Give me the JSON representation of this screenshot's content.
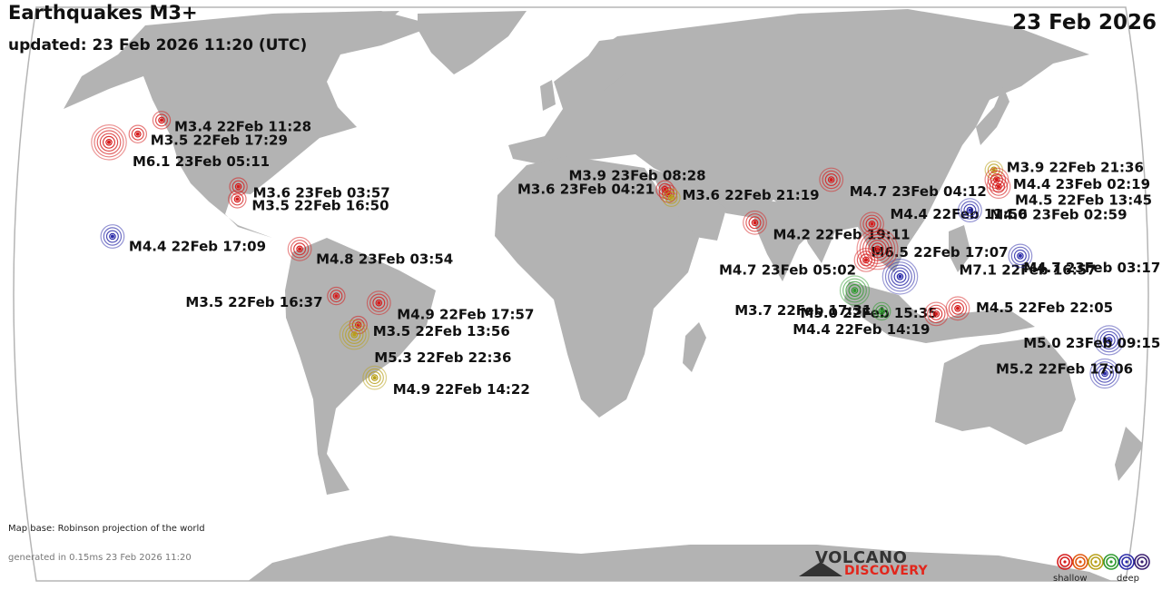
{
  "map": {
    "title": "Earthquakes M3+",
    "updated": "updated: 23 Feb 2026 11:20 (UTC)",
    "date": "23 Feb 2026",
    "base_note": "Map base: Robinson projection of the world",
    "generated_note": "generated in 0.15ms 23 Feb 2026 11:20",
    "ocean_color": "#ffffff",
    "land_color": "#b3b3b3"
  },
  "brand": {
    "line1": "VOLCANO",
    "line2": "DISCOVERY",
    "accent_color": "#e2261c"
  },
  "legend": {
    "shallow_label": "shallow",
    "deep_label": "deep",
    "depth_colors": [
      "#d51d1d",
      "#e0580f",
      "#b8a01a",
      "#2f9a2f",
      "#2b2ba8",
      "#3a1f70"
    ]
  },
  "quakes": [
    {
      "label": "M3.4 22Feb 11:28",
      "lon": -150.5,
      "lat": 61.5,
      "mag": 3.4,
      "depth": "shallow"
    },
    {
      "label": "M3.5 22Feb 17:29",
      "lon": -157,
      "lat": 56.5,
      "mag": 3.5,
      "depth": "shallow"
    },
    {
      "label": "M6.1 23Feb 05:11",
      "lon": -166,
      "lat": 53.5,
      "mag": 6.1,
      "depth": "shallow"
    },
    {
      "label": "M3.6 23Feb 03:57",
      "lon": -116.5,
      "lat": 37.5,
      "mag": 3.6,
      "depth": "shallow"
    },
    {
      "label": "M3.5 22Feb 16:50",
      "lon": -116,
      "lat": 33,
      "mag": 3.5,
      "depth": "shallow"
    },
    {
      "label": "M4.4 22Feb 17:09",
      "lon": -155.5,
      "lat": 19.5,
      "mag": 4.4,
      "depth": "deep"
    },
    {
      "label": "M4.8 23Feb 03:54",
      "lon": -93,
      "lat": 15,
      "mag": 4.8,
      "depth": "shallow"
    },
    {
      "label": "M3.5 22Feb 16:37",
      "lon": -80.5,
      "lat": -2,
      "mag": 3.5,
      "depth": "shallow"
    },
    {
      "label": "M4.9 22Feb 17:57",
      "lon": -66.5,
      "lat": -4.5,
      "mag": 4.9,
      "depth": "shallow"
    },
    {
      "label": "M3.5 22Feb 13:56",
      "lon": -73.5,
      "lat": -12.5,
      "mag": 3.5,
      "depth": "shallow"
    },
    {
      "label": "M5.3 22Feb 22:36",
      "lon": -75,
      "lat": -16,
      "mag": 5.3,
      "depth": "intermediate"
    },
    {
      "label": "M4.9 22Feb 14:22",
      "lon": -69.5,
      "lat": -31.5,
      "mag": 4.9,
      "depth": "intermediate"
    },
    {
      "label": "M3.9 23Feb 08:28",
      "lon": 28.5,
      "lat": 36.5,
      "mag": 3.9,
      "depth": "shallow"
    },
    {
      "label": "M3.6 23Feb 04:21",
      "lon": 29.5,
      "lat": 35,
      "mag": 3.6,
      "depth": "shallow"
    },
    {
      "label": "M3.6 22Feb 21:19",
      "lon": 30.5,
      "lat": 33.5,
      "mag": 3.6,
      "depth": "intermediate"
    },
    {
      "label": "M4.2 22Feb 19:11",
      "lon": 58,
      "lat": 24.5,
      "mag": 4.2,
      "depth": "shallow"
    },
    {
      "label": "M4.7 23Feb 04:12",
      "lon": 85.5,
      "lat": 40,
      "mag": 4.7,
      "depth": "shallow"
    },
    {
      "label": "M4.4 22Feb 11:50",
      "lon": 97,
      "lat": 24,
      "mag": 4.4,
      "depth": "shallow"
    },
    {
      "label": "M4.7 23Feb 05:02",
      "lon": 94,
      "lat": 11,
      "mag": 4.7,
      "depth": "shallow"
    },
    {
      "label": "M6.5 22Feb 17:07",
      "lon": 105,
      "lat": 5,
      "mag": 6.5,
      "depth": "deep"
    },
    {
      "label": "M7.1 22Feb 16:57",
      "lon": 98,
      "lat": 15,
      "mag": 7.1,
      "depth": "shallow"
    },
    {
      "label": "M5.0 22Feb 15:35",
      "lon": 90,
      "lat": 0,
      "mag": 5.0,
      "depth": "intermediate-deep"
    },
    {
      "label": "M3.7 22Feb 17:31",
      "lon": 99,
      "lat": -7.5,
      "mag": 3.7,
      "depth": "intermediate-deep"
    },
    {
      "label": "M4.4 22Feb 14:19",
      "lon": 117,
      "lat": -8.5,
      "mag": 4.4,
      "depth": "shallow"
    },
    {
      "label": "M4.5 22Feb 22:05",
      "lon": 124,
      "lat": -6.5,
      "mag": 4.5,
      "depth": "shallow"
    },
    {
      "label": "M3.9 22Feb 21:36",
      "lon": 142,
      "lat": 43.5,
      "mag": 3.9,
      "depth": "intermediate"
    },
    {
      "label": "M4.4 23Feb 02:19",
      "lon": 142,
      "lat": 40,
      "mag": 4.4,
      "depth": "shallow"
    },
    {
      "label": "M4.5 22Feb 13:45",
      "lon": 142,
      "lat": 37.5,
      "mag": 4.5,
      "depth": "shallow"
    },
    {
      "label": "M4.6 23Feb 02:59",
      "lon": 130.5,
      "lat": 29,
      "mag": 4.6,
      "depth": "deep"
    },
    {
      "label": "M4.7 23Feb 03:17",
      "lon": 145,
      "lat": 12.5,
      "mag": 4.7,
      "depth": "deep"
    },
    {
      "label": "M5.0 23Feb 09:15",
      "lon": 175,
      "lat": -18,
      "mag": 5.0,
      "depth": "deep"
    },
    {
      "label": "M5.2 22Feb 17:06",
      "lon": 176,
      "lat": -30,
      "mag": 5.2,
      "depth": "deep"
    }
  ]
}
